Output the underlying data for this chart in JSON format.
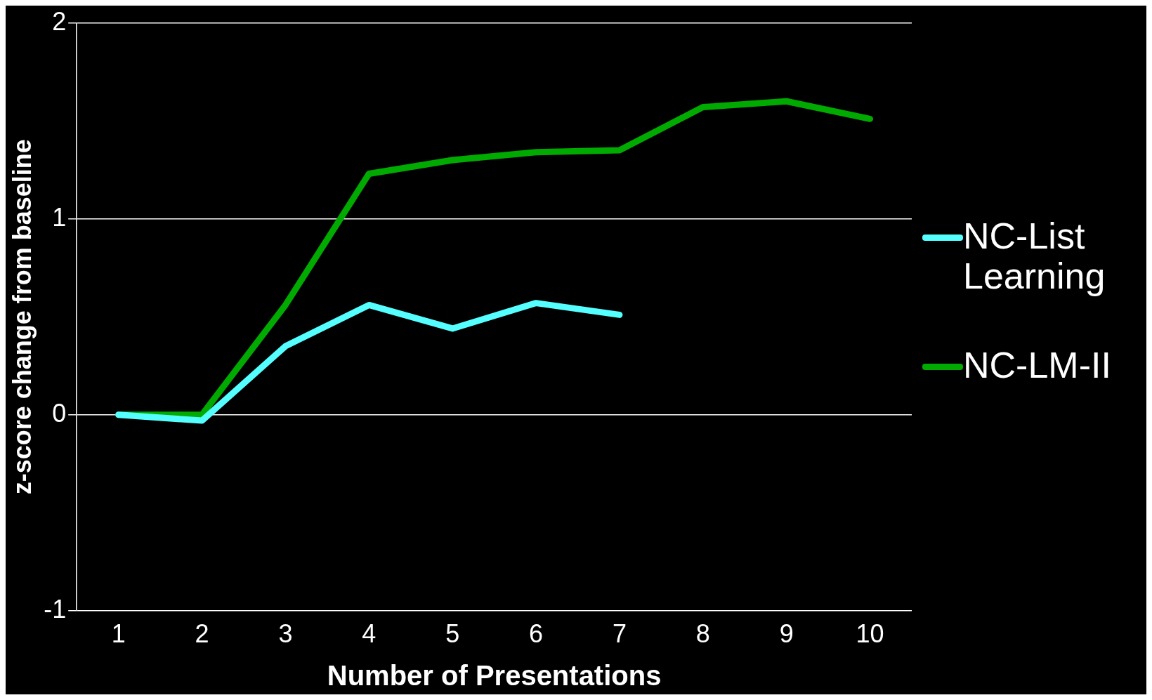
{
  "chart_data": {
    "type": "line",
    "xlabel": "Number of Presentations",
    "ylabel": "z-score change from baseline",
    "categories": [
      "1",
      "2",
      "3",
      "4",
      "5",
      "6",
      "7",
      "8",
      "9",
      "10"
    ],
    "series": [
      {
        "name": "NC-List Learning",
        "color": "#55ffff",
        "values": [
          0,
          -0.03,
          0.35,
          0.56,
          0.44,
          0.57,
          0.51,
          null,
          null,
          null
        ]
      },
      {
        "name": "NC-LM-II",
        "color": "#00aa00",
        "values": [
          0,
          0,
          0.56,
          1.23,
          1.3,
          1.34,
          1.35,
          1.57,
          1.6,
          1.51
        ]
      }
    ],
    "ylim": [
      -1,
      2
    ],
    "yticks": [
      -1,
      0,
      1,
      2
    ],
    "grid": "y",
    "legend": "right",
    "marker": "none",
    "line_style": "solid"
  }
}
